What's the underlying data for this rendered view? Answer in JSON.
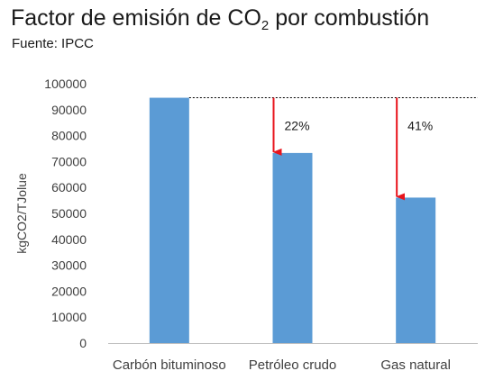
{
  "title": {
    "main": "Factor de emisión de CO",
    "sub": "2",
    "rest": " por combustión"
  },
  "subtitle": "Fuente: IPCC",
  "colors": {
    "bar": "#5b9bd5",
    "arrow": "#e8141c",
    "axis": "#bfbfbf",
    "reference_line": "#000000"
  },
  "chart_data": {
    "type": "bar",
    "categories": [
      "Carbón bituminoso",
      "Petróleo crudo",
      "Gas natural"
    ],
    "values": [
      94600,
      73300,
      56100
    ],
    "ylabel": "kgCO2/TJolue",
    "xlabel": "",
    "ylim": [
      0,
      100000
    ],
    "yticks": [
      0,
      10000,
      20000,
      30000,
      40000,
      50000,
      60000,
      70000,
      80000,
      90000,
      100000
    ],
    "grid": false,
    "reference_line": {
      "value": 94600,
      "style": "dotted"
    },
    "annotations": [
      {
        "category": "Petróleo crudo",
        "label": "22%",
        "from": 94600,
        "to": 73300
      },
      {
        "category": "Gas natural",
        "label": "41%",
        "from": 94600,
        "to": 56100
      }
    ]
  }
}
